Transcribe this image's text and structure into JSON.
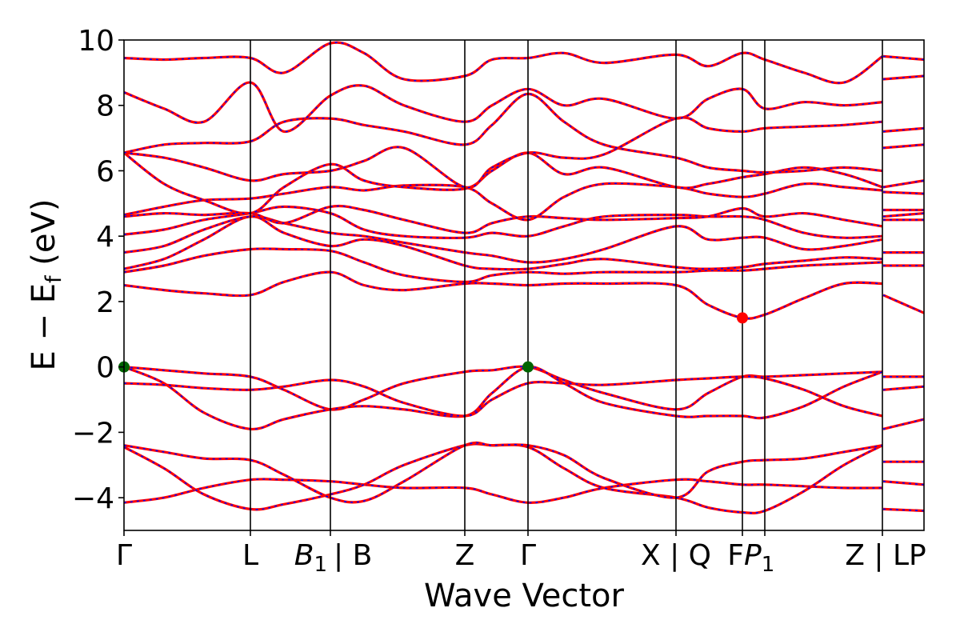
{
  "chart_data": {
    "type": "line",
    "title": "",
    "xlabel": "Wave Vector",
    "ylabel": "E − E_f (eV)",
    "ylabel_parts": {
      "main": "E − E",
      "sub": "f",
      "unit": " (eV)"
    },
    "ylim": [
      -5,
      10
    ],
    "xlim": [
      0,
      1
    ],
    "grid": false,
    "legend": "none",
    "y_ticks": [
      -4,
      -2,
      0,
      2,
      4,
      6,
      8,
      10
    ],
    "y_tick_labels": [
      "−4",
      "−2",
      "0",
      "2",
      "4",
      "6",
      "8",
      "10"
    ],
    "k_points": [
      {
        "label": "Γ",
        "x": 0.0
      },
      {
        "label": "L",
        "x": 0.158
      },
      {
        "label": "B",
        "sub": "1",
        "x": 0.258
      },
      {
        "label": "| B",
        "x": 0.258
      },
      {
        "label": "Z",
        "x": 0.426
      },
      {
        "label": "Γ",
        "x": 0.505
      },
      {
        "label": "X | Q",
        "x": 0.69
      },
      {
        "label": "F",
        "x": 0.773
      },
      {
        "label": "P",
        "sub": "1",
        "x": 0.801
      },
      {
        "label": "Z | LP",
        "x": 0.948
      }
    ],
    "segment_lines_x": [
      0.158,
      0.258,
      0.426,
      0.505,
      0.69,
      0.773,
      0.801,
      0.948
    ],
    "colors": {
      "band_main": "#ff0000",
      "band_dash": "#0000ff",
      "vbm": "#006400",
      "cbm": "#ff0000"
    },
    "markers": [
      {
        "name": "vbm",
        "x": 0.0,
        "y": 0.0,
        "color": "#006400"
      },
      {
        "name": "vbm",
        "x": 0.505,
        "y": 0.0,
        "color": "#006400"
      },
      {
        "name": "cbm",
        "x": 0.773,
        "y": 1.5,
        "color": "#ff0000"
      }
    ],
    "series": [
      {
        "x": [
          0,
          0.05,
          0.1,
          0.158,
          0.2,
          0.258,
          0.3,
          0.35,
          0.426,
          0.46,
          0.505,
          0.55,
          0.6,
          0.69,
          0.73,
          0.773,
          0.801,
          0.85,
          0.9,
          0.948,
          0.949,
          1.0
        ],
        "y": [
          -4.15,
          -4.0,
          -3.7,
          -3.45,
          -3.45,
          -3.5,
          -3.6,
          -3.7,
          -3.7,
          -3.9,
          -4.15,
          -4.0,
          -3.7,
          -3.45,
          -3.5,
          -3.6,
          -3.6,
          -3.65,
          -3.7,
          -3.7,
          -4.35,
          -4.4
        ]
      },
      {
        "x": [
          0,
          0.05,
          0.1,
          0.158,
          0.2,
          0.258,
          0.3,
          0.35,
          0.426,
          0.46,
          0.505,
          0.55,
          0.6,
          0.69,
          0.73,
          0.773,
          0.801,
          0.85,
          0.9,
          0.948,
          0.949,
          1.0
        ],
        "y": [
          -2.45,
          -3.1,
          -3.9,
          -4.35,
          -4.2,
          -3.9,
          -3.6,
          -3.0,
          -2.4,
          -2.4,
          -2.45,
          -3.1,
          -3.7,
          -4.0,
          -4.3,
          -4.45,
          -4.4,
          -3.8,
          -3.0,
          -2.4,
          -3.5,
          -3.6
        ]
      },
      {
        "x": [
          0,
          0.05,
          0.1,
          0.158,
          0.2,
          0.258,
          0.3,
          0.35,
          0.426,
          0.46,
          0.505,
          0.55,
          0.6,
          0.69,
          0.73,
          0.773,
          0.801,
          0.85,
          0.9,
          0.948,
          0.949,
          1.0
        ],
        "y": [
          -2.4,
          -2.6,
          -2.8,
          -2.85,
          -3.3,
          -4.0,
          -4.1,
          -3.5,
          -2.4,
          -2.4,
          -2.4,
          -2.7,
          -3.4,
          -4.0,
          -3.2,
          -2.9,
          -2.85,
          -2.8,
          -2.6,
          -2.4,
          -2.9,
          -2.9
        ]
      },
      {
        "x": [
          0,
          0.05,
          0.1,
          0.158,
          0.2,
          0.258,
          0.3,
          0.35,
          0.426,
          0.46,
          0.505,
          0.55,
          0.6,
          0.69,
          0.73,
          0.773,
          0.801,
          0.85,
          0.9,
          0.948,
          0.949,
          1.0
        ],
        "y": [
          0.0,
          -0.1,
          -0.2,
          -0.3,
          -0.7,
          -1.3,
          -1.0,
          -0.5,
          -0.15,
          -0.1,
          0.0,
          -0.4,
          -0.8,
          -1.3,
          -0.8,
          -0.3,
          -0.3,
          -0.25,
          -0.2,
          -0.15,
          -0.3,
          -0.3
        ]
      },
      {
        "x": [
          0,
          0.05,
          0.1,
          0.158,
          0.2,
          0.258,
          0.3,
          0.35,
          0.426,
          0.46,
          0.505,
          0.55,
          0.6,
          0.69,
          0.73,
          0.773,
          0.801,
          0.85,
          0.9,
          0.948,
          0.949,
          1.0
        ],
        "y": [
          0.0,
          -0.5,
          -1.4,
          -1.9,
          -1.6,
          -1.3,
          -1.2,
          -1.3,
          -1.5,
          -0.8,
          0.0,
          -0.5,
          -1.1,
          -1.5,
          -1.5,
          -1.5,
          -1.55,
          -1.2,
          -0.6,
          -0.15,
          -0.7,
          -0.6
        ]
      },
      {
        "x": [
          0,
          0.05,
          0.1,
          0.158,
          0.2,
          0.258,
          0.3,
          0.35,
          0.426,
          0.46,
          0.505,
          0.55,
          0.6,
          0.69,
          0.73,
          0.773,
          0.801,
          0.85,
          0.9,
          0.948,
          0.949,
          1.0
        ],
        "y": [
          -0.5,
          -0.55,
          -0.65,
          -0.7,
          -0.6,
          -0.4,
          -0.6,
          -1.1,
          -1.5,
          -1.0,
          -0.5,
          -0.5,
          -0.55,
          -0.4,
          -0.35,
          -0.3,
          -0.35,
          -0.7,
          -1.2,
          -1.5,
          -1.9,
          -1.6
        ]
      },
      {
        "x": [
          0,
          0.05,
          0.1,
          0.158,
          0.2,
          0.258,
          0.3,
          0.35,
          0.426,
          0.46,
          0.505,
          0.55,
          0.6,
          0.69,
          0.73,
          0.773,
          0.801,
          0.85,
          0.9,
          0.948,
          0.949,
          1.0
        ],
        "y": [
          2.5,
          2.35,
          2.25,
          2.2,
          2.6,
          2.9,
          2.5,
          2.35,
          2.55,
          2.55,
          2.5,
          2.55,
          2.55,
          2.5,
          1.9,
          1.5,
          1.6,
          2.1,
          2.55,
          2.55,
          2.2,
          1.65
        ]
      },
      {
        "x": [
          0,
          0.05,
          0.1,
          0.158,
          0.2,
          0.258,
          0.3,
          0.35,
          0.426,
          0.46,
          0.505,
          0.55,
          0.6,
          0.69,
          0.73,
          0.773,
          0.801,
          0.85,
          0.9,
          0.948,
          0.949,
          1.0
        ],
        "y": [
          2.9,
          3.1,
          3.4,
          3.6,
          3.6,
          3.55,
          3.2,
          2.8,
          2.6,
          2.8,
          2.9,
          2.85,
          2.9,
          2.9,
          2.95,
          2.95,
          3.0,
          3.1,
          3.15,
          3.2,
          3.1,
          3.1
        ]
      },
      {
        "x": [
          0,
          0.05,
          0.1,
          0.158,
          0.2,
          0.258,
          0.3,
          0.35,
          0.426,
          0.46,
          0.505,
          0.55,
          0.6,
          0.69,
          0.73,
          0.773,
          0.801,
          0.85,
          0.9,
          0.948,
          0.949,
          1.0
        ],
        "y": [
          3.0,
          3.3,
          3.9,
          4.6,
          4.1,
          3.7,
          3.9,
          3.7,
          3.1,
          3.0,
          3.0,
          3.15,
          3.3,
          3.05,
          3.0,
          3.05,
          3.15,
          3.25,
          3.35,
          3.3,
          3.5,
          3.5
        ]
      },
      {
        "x": [
          0,
          0.05,
          0.1,
          0.158,
          0.2,
          0.258,
          0.3,
          0.35,
          0.426,
          0.46,
          0.505,
          0.55,
          0.6,
          0.69,
          0.73,
          0.773,
          0.801,
          0.85,
          0.9,
          0.948,
          0.949,
          1.0
        ],
        "y": [
          3.5,
          3.7,
          4.2,
          4.6,
          4.4,
          4.1,
          4.0,
          3.8,
          3.5,
          3.4,
          3.2,
          3.3,
          3.6,
          4.3,
          3.9,
          3.95,
          3.95,
          3.6,
          3.7,
          3.9,
          4.5,
          4.5
        ]
      },
      {
        "x": [
          0,
          0.05,
          0.1,
          0.158,
          0.2,
          0.258,
          0.3,
          0.35,
          0.426,
          0.46,
          0.505,
          0.55,
          0.6,
          0.69,
          0.73,
          0.773,
          0.801,
          0.85,
          0.9,
          0.948,
          0.949,
          1.0
        ],
        "y": [
          4.05,
          4.2,
          4.5,
          4.7,
          4.9,
          4.7,
          4.2,
          4.0,
          3.95,
          4.1,
          4.0,
          4.3,
          4.6,
          4.65,
          4.6,
          4.6,
          4.5,
          4.1,
          3.95,
          4.0,
          4.6,
          4.7
        ]
      },
      {
        "x": [
          0,
          0.05,
          0.1,
          0.158,
          0.2,
          0.258,
          0.3,
          0.35,
          0.426,
          0.46,
          0.505,
          0.55,
          0.6,
          0.69,
          0.73,
          0.773,
          0.801,
          0.85,
          0.9,
          0.948,
          0.949,
          1.0
        ],
        "y": [
          4.6,
          4.7,
          4.65,
          4.7,
          4.4,
          4.9,
          4.8,
          4.5,
          4.1,
          4.4,
          4.6,
          4.55,
          4.5,
          4.55,
          4.6,
          4.85,
          4.6,
          4.7,
          4.5,
          4.3,
          4.8,
          4.8
        ]
      },
      {
        "x": [
          0,
          0.05,
          0.1,
          0.158,
          0.2,
          0.258,
          0.3,
          0.35,
          0.426,
          0.46,
          0.505,
          0.55,
          0.6,
          0.69,
          0.73,
          0.773,
          0.801,
          0.85,
          0.9,
          0.948,
          0.949,
          1.0
        ],
        "y": [
          4.65,
          4.9,
          5.1,
          5.15,
          5.3,
          5.5,
          5.4,
          5.55,
          5.5,
          5.0,
          4.5,
          5.2,
          5.6,
          5.5,
          5.3,
          5.2,
          5.3,
          5.6,
          5.5,
          5.4,
          5.35,
          5.3
        ]
      },
      {
        "x": [
          0,
          0.05,
          0.1,
          0.158,
          0.2,
          0.258,
          0.3,
          0.35,
          0.426,
          0.46,
          0.505,
          0.55,
          0.6,
          0.69,
          0.73,
          0.773,
          0.801,
          0.85,
          0.9,
          0.948,
          0.949,
          1.0
        ],
        "y": [
          6.55,
          5.6,
          5.1,
          4.7,
          5.5,
          6.2,
          5.7,
          5.5,
          5.45,
          6.0,
          6.55,
          5.9,
          6.1,
          5.5,
          5.6,
          5.8,
          5.9,
          6.1,
          5.9,
          5.5,
          5.5,
          5.7
        ]
      },
      {
        "x": [
          0,
          0.05,
          0.1,
          0.158,
          0.2,
          0.258,
          0.3,
          0.35,
          0.426,
          0.46,
          0.505,
          0.55,
          0.6,
          0.69,
          0.73,
          0.773,
          0.801,
          0.85,
          0.9,
          0.948,
          0.949,
          1.0
        ],
        "y": [
          6.55,
          6.4,
          6.1,
          5.7,
          5.9,
          6.0,
          6.3,
          6.7,
          5.5,
          6.1,
          6.55,
          6.4,
          6.5,
          7.6,
          7.3,
          7.2,
          7.3,
          7.35,
          7.4,
          7.5,
          6.7,
          6.8
        ]
      },
      {
        "x": [
          0,
          0.05,
          0.1,
          0.158,
          0.2,
          0.258,
          0.3,
          0.35,
          0.426,
          0.46,
          0.505,
          0.55,
          0.6,
          0.69,
          0.73,
          0.773,
          0.801,
          0.85,
          0.9,
          0.948,
          0.949,
          1.0
        ],
        "y": [
          6.55,
          6.8,
          6.85,
          6.9,
          7.5,
          7.6,
          7.4,
          7.2,
          6.8,
          7.4,
          8.35,
          7.5,
          6.8,
          6.4,
          6.1,
          6.0,
          5.95,
          6.0,
          6.1,
          6.0,
          7.2,
          7.3
        ]
      },
      {
        "x": [
          0,
          0.05,
          0.1,
          0.158,
          0.2,
          0.258,
          0.3,
          0.35,
          0.426,
          0.46,
          0.505,
          0.55,
          0.6,
          0.69,
          0.73,
          0.773,
          0.801,
          0.85,
          0.9,
          0.948,
          0.949,
          1.0
        ],
        "y": [
          8.4,
          7.9,
          7.5,
          8.7,
          7.2,
          8.3,
          8.6,
          8.0,
          7.5,
          8.0,
          8.5,
          8.0,
          8.2,
          7.6,
          8.2,
          8.5,
          7.9,
          8.1,
          8.0,
          8.1,
          8.8,
          8.9
        ]
      },
      {
        "x": [
          0,
          0.05,
          0.1,
          0.158,
          0.2,
          0.258,
          0.3,
          0.35,
          0.426,
          0.46,
          0.505,
          0.55,
          0.6,
          0.69,
          0.73,
          0.773,
          0.801,
          0.85,
          0.9,
          0.948,
          0.949,
          1.0
        ],
        "y": [
          9.45,
          9.4,
          9.45,
          9.45,
          9.0,
          9.9,
          9.6,
          8.8,
          8.9,
          9.4,
          9.45,
          9.6,
          9.3,
          9.55,
          9.2,
          9.6,
          9.4,
          9.0,
          8.7,
          9.5,
          9.5,
          9.4
        ]
      }
    ]
  }
}
